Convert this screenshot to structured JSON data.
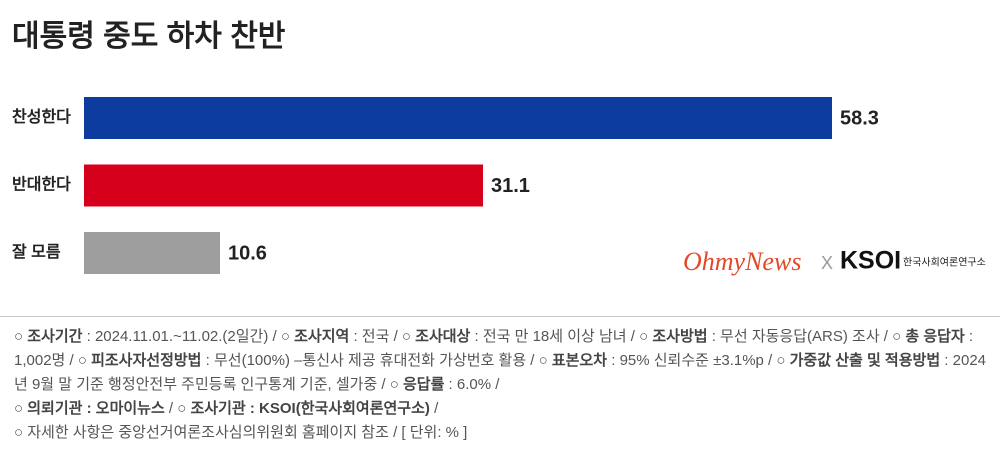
{
  "chart_data": {
    "type": "bar",
    "orientation": "horizontal",
    "title": "대통령 중도 하차 찬반",
    "categories": [
      "찬성한다",
      "반대한다",
      "잘 모름"
    ],
    "values": [
      58.3,
      31.1,
      10.6
    ],
    "colors": [
      "#0b3c9e",
      "#d6001c",
      "#9e9e9e"
    ]
  },
  "logo": {
    "ohmynews": "OhmyNews",
    "separator": "X",
    "ksoi": "KSOI",
    "ksoi_name": "한국사회여론연구소"
  },
  "footnote": {
    "paragraphs": [
      {
        "segments": [
          {
            "text": "○ "
          },
          {
            "text": "조사기간",
            "bold": true
          },
          {
            "text": " : 2024.11.01.~11.02.(2일간) / ○ "
          },
          {
            "text": "조사지역",
            "bold": true
          },
          {
            "text": " : 전국 / ○ "
          },
          {
            "text": "조사대상",
            "bold": true
          },
          {
            "text": " : 전국 만 18세 이상 남녀 / ○ "
          },
          {
            "text": "조사방법",
            "bold": true
          },
          {
            "text": " : 무선 자동응답(ARS) 조사 / ○ "
          },
          {
            "text": "총 응답자",
            "bold": true
          },
          {
            "text": " : 1,002명 / ○ "
          },
          {
            "text": "피조사자선정방법",
            "bold": true
          },
          {
            "text": " : 무선(100%) –통신사 제공 휴대전화 가상번호 활용 / ○ "
          },
          {
            "text": "표본오차",
            "bold": true
          },
          {
            "text": " : 95% 신뢰수준 ±3.1%p / ○ "
          },
          {
            "text": "가중값 산출 및 적용방법",
            "bold": true
          },
          {
            "text": " : 2024년 9월 말 기준 행정안전부 주민등록 인구통계 기준, 셀가중 / ○ "
          },
          {
            "text": "응답률",
            "bold": true
          },
          {
            "text": " : 6.0% /"
          }
        ]
      },
      {
        "segments": [
          {
            "text": "○ "
          },
          {
            "text": "의뢰기관 : 오마이뉴스",
            "bold": true
          },
          {
            "text": " / ○ "
          },
          {
            "text": "조사기관 : KSOI(한국사회여론연구소)",
            "bold": true
          },
          {
            "text": " /"
          }
        ]
      },
      {
        "segments": [
          {
            "text": "○ 자세한 사항은 중앙선거여론조사심의위원회 홈페이지 참조 / [ 단위: % ]"
          }
        ]
      }
    ]
  }
}
